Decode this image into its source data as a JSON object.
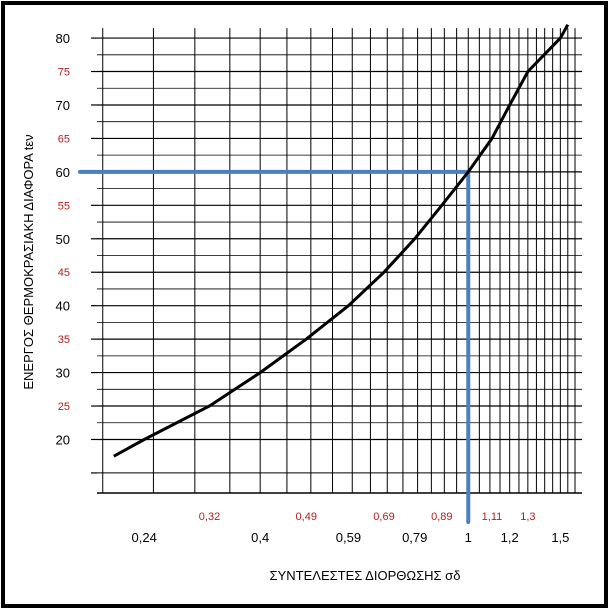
{
  "chart_data": {
    "type": "line",
    "xlabel": "ΣΥΝΤΕΛΕΣΤΕΣ ΔΙΟΡΘΩΣΗΣ σδ",
    "ylabel": "ΕΝΕΡΓΟΣ ΘΕΡΜΟΚΡΑΣΙΑΚΗ ΔΙΑΦΟΡΑ tεν",
    "x_scale": "log",
    "xlim": [
      0.195,
      1.65
    ],
    "ylim": [
      12,
      83
    ],
    "grid": true,
    "x_ticks_black": [
      "0,24",
      "0,4",
      "0,59",
      "0,79",
      "1",
      "1,2",
      "1,5"
    ],
    "x_ticks_black_values": [
      0.24,
      0.4,
      0.59,
      0.79,
      1.0,
      1.2,
      1.5
    ],
    "x_ticks_red": [
      "0,32",
      "0,49",
      "0,69",
      "0,89",
      "1,11",
      "1,3"
    ],
    "x_ticks_red_values": [
      0.32,
      0.49,
      0.69,
      0.89,
      1.11,
      1.3
    ],
    "y_ticks_black": [
      "20",
      "30",
      "40",
      "50",
      "60",
      "70",
      "80"
    ],
    "y_ticks_black_values": [
      20,
      30,
      40,
      50,
      60,
      70,
      80
    ],
    "y_ticks_red": [
      "25",
      "35",
      "45",
      "55",
      "65",
      "75"
    ],
    "y_ticks_red_values": [
      25,
      35,
      45,
      55,
      65,
      75
    ],
    "series": [
      {
        "x": [
          0.21,
          0.24,
          0.32,
          0.4,
          0.49,
          0.59,
          0.69,
          0.79,
          0.89,
          1.0,
          1.11,
          1.2,
          1.3,
          1.5,
          1.55
        ],
        "y": [
          17.5,
          20,
          25,
          30,
          35,
          40,
          45,
          50,
          55,
          60,
          65,
          70,
          75,
          80,
          82
        ]
      }
    ],
    "highlight": {
      "x": 1.0,
      "y": 60
    },
    "colors": {
      "curve": "#000000",
      "highlight": "#4a7fc4",
      "red_tick": "#b0201e",
      "grid": "#000000"
    }
  }
}
